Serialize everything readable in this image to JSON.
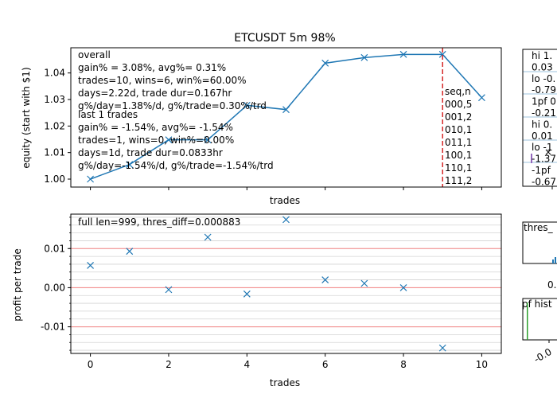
{
  "chart_data": [
    {
      "type": "line",
      "title": "ETCUSDT 5m 98%",
      "xlabel": "trades",
      "ylabel": "equity (start with $1)",
      "xlim": [
        -0.5,
        10.5
      ],
      "ylim": [
        0.997,
        1.0495
      ],
      "x": [
        0,
        1,
        2,
        3,
        4,
        5,
        6,
        7,
        8,
        9,
        10
      ],
      "y": [
        1.0,
        1.0055,
        1.0148,
        1.0148,
        1.0278,
        1.0262,
        1.0437,
        1.0458,
        1.047,
        1.047,
        1.0307
      ],
      "yticks": [
        "1.00",
        "1.01",
        "1.02",
        "1.03",
        "1.04"
      ],
      "ytick_values": [
        1.0,
        1.01,
        1.02,
        1.03,
        1.04
      ],
      "vline_x": 9,
      "vline_color": "#d62728",
      "line_color": "#1f77b4",
      "overall_stats": [
        "overall",
        "gain% = 3.08%, avg%= 0.31%",
        "trades=10, wins=6, win%=60.00%",
        "days=2.22d, trade dur=0.167hr",
        "g%/day=1.38%/d, g%/trade=0.30%/trd"
      ],
      "last_stats": [
        "last 1 trades",
        "gain% = -1.54%, avg%= -1.54%",
        "trades=1, wins=0, win%=0.00%",
        "days=1d, trade dur=0.0833hr",
        "g%/day=-1.54%/d, g%/trade=-1.54%/trd"
      ],
      "seq_table": [
        "seq,n",
        "000,5",
        "001,2",
        "010,1",
        "011,1",
        "100,1",
        "110,1",
        "111,2"
      ]
    },
    {
      "type": "scatter",
      "xlabel": "trades",
      "ylabel": "profit per trade",
      "xlim": [
        -0.5,
        10.5
      ],
      "ylim": [
        -0.0168,
        0.0188
      ],
      "x": [
        0,
        1,
        2,
        3,
        4,
        5,
        6,
        7,
        8,
        9
      ],
      "y": [
        0.0057,
        0.0093,
        -0.0005,
        0.0129,
        -0.0016,
        0.0174,
        0.002,
        0.0011,
        0.0,
        -0.0154
      ],
      "xticks": [
        "0",
        "2",
        "4",
        "6",
        "8",
        "10"
      ],
      "xtick_values": [
        0,
        2,
        4,
        6,
        8,
        10
      ],
      "yticks": [
        "-0.01",
        "0.00",
        "0.01"
      ],
      "ytick_values": [
        -0.01,
        0.0,
        0.01
      ],
      "hlines_red": [
        -0.01,
        0.0,
        0.01
      ],
      "annotation": "full len=999, thres_diff=0.000883",
      "marker_color": "#1f77b4"
    }
  ],
  "side_panels": {
    "panel1_lines": [
      "hi 1.",
      "0.03",
      "lo -0.",
      "-0.79",
      "1pf 0",
      "-0.21",
      "hi 0.",
      "0.01",
      "lo -1",
      "-1.37",
      "-1pf",
      "-0.67"
    ],
    "panel2_label": "thres_",
    "panel2_tick": "0.",
    "panel3_label": "pf hist",
    "panel3_tick": "-0.0"
  }
}
